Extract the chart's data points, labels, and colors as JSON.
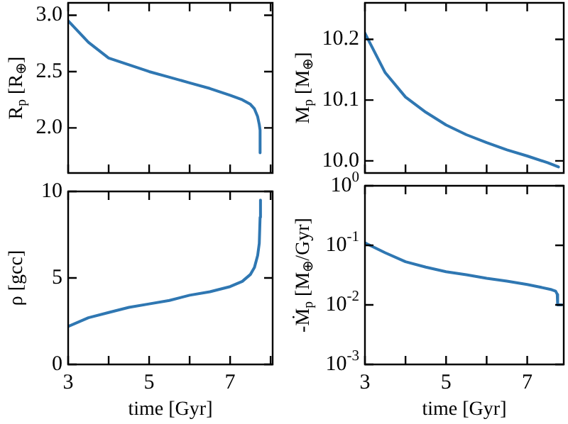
{
  "chart_data": [
    {
      "type": "line",
      "ylabel": "R$_{p}$ [R$_{⊕}$]",
      "color": "#2f77b2",
      "tick_labels": "y",
      "xlim": [
        3,
        8.05
      ],
      "xticks": [
        3,
        {
          "value": 4,
          "label": null
        },
        5,
        {
          "value": 6,
          "label": null
        },
        7,
        {
          "value": 8,
          "label": null
        }
      ],
      "ylim": [
        1.6,
        3.11
      ],
      "yticks": [
        {
          "value": 2,
          "label": "2.0"
        },
        2.5,
        {
          "value": 3,
          "label": "3.0"
        }
      ],
      "x": [
        3,
        3.5,
        4,
        4.5,
        5,
        5.5,
        6,
        6.5,
        7,
        7.3,
        7.5,
        7.6,
        7.68,
        7.72,
        7.74,
        7.74
      ],
      "values": [
        2.95,
        2.76,
        2.62,
        2.56,
        2.5,
        2.45,
        2.4,
        2.35,
        2.29,
        2.25,
        2.21,
        2.17,
        2.1,
        2.03,
        1.98,
        1.78
      ]
    },
    {
      "type": "line",
      "ylabel": "M$_{p}$ [M$_{⊕}$]",
      "color": "#2f77b2",
      "tick_labels": "y",
      "xlim": [
        3,
        7.9
      ],
      "xticks": [
        3,
        {
          "value": 4,
          "label": null
        },
        5,
        {
          "value": 6,
          "label": null
        },
        7
      ],
      "ylim": [
        9.98,
        10.26
      ],
      "yticks": [
        {
          "value": 10,
          "label": "10.0"
        },
        10.1,
        10.2
      ],
      "x": [
        3,
        3.5,
        4,
        4.5,
        5,
        5.5,
        6,
        6.5,
        7,
        7.5,
        7.77
      ],
      "values": [
        10.21,
        10.145,
        10.105,
        10.08,
        10.059,
        10.043,
        10.03,
        10.018,
        10.008,
        9.997,
        9.99
      ]
    },
    {
      "type": "line",
      "ylabel": "ρ [gcc]",
      "xlabel": "time [Gyr]",
      "color": "#2f77b2",
      "xlim": [
        3,
        8.05
      ],
      "xticks": [
        3,
        {
          "value": 4,
          "label": null
        },
        5,
        {
          "value": 6,
          "label": null
        },
        7,
        {
          "value": 8,
          "label": null
        }
      ],
      "ylim": [
        0,
        10
      ],
      "yticks": [
        0,
        5,
        10
      ],
      "x": [
        3,
        3.5,
        4,
        4.5,
        5,
        5.5,
        6,
        6.5,
        7,
        7.3,
        7.5,
        7.6,
        7.68,
        7.72,
        7.74,
        7.75
      ],
      "values": [
        2.2,
        2.7,
        3,
        3.3,
        3.5,
        3.7,
        4,
        4.2,
        4.5,
        4.8,
        5.2,
        5.6,
        6.3,
        7,
        8.5,
        9.5
      ]
    },
    {
      "type": "line",
      "ylabel": "-Ṁ$_{p}$ [M$_{⊕}$/Gyr]",
      "xlabel": "time [Gyr]",
      "color": "#2f77b2",
      "log": true,
      "xlim": [
        3,
        7.9
      ],
      "xticks": [
        3,
        {
          "value": 4,
          "label": null
        },
        5,
        {
          "value": 6,
          "label": null
        },
        7
      ],
      "ylim": [
        0.001,
        1
      ],
      "yticks": [
        {
          "value": 0.001,
          "label": "10$^{-3}$"
        },
        {
          "value": 0.01,
          "label": "10$^{-2}$"
        },
        {
          "value": 0.1,
          "label": "10$^{-1}$"
        },
        {
          "value": 1,
          "label": "10$^{0}$"
        }
      ],
      "x": [
        3,
        3.5,
        4,
        4.5,
        5,
        5.5,
        6,
        6.5,
        7,
        7.3,
        7.6,
        7.7,
        7.74,
        7.75,
        7.85
      ],
      "values": [
        0.11,
        0.075,
        0.053,
        0.043,
        0.036,
        0.032,
        0.028,
        0.025,
        0.022,
        0.02,
        0.018,
        0.017,
        0.015,
        0.01,
        0.01
      ]
    }
  ]
}
